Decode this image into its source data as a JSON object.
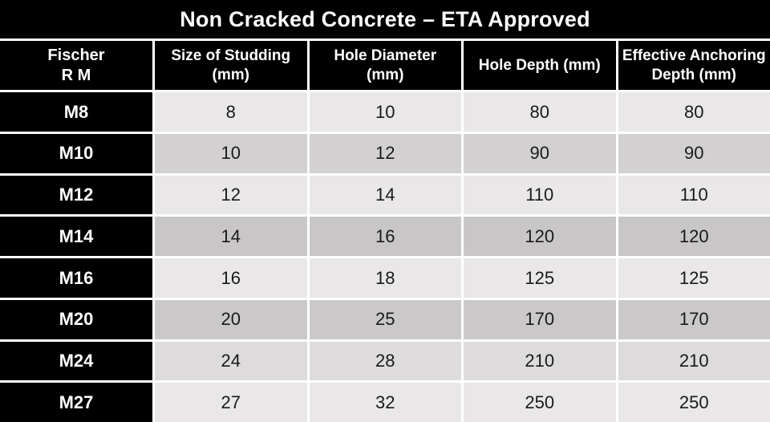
{
  "title": "Non Cracked Concrete – ETA Approved",
  "columns": [
    {
      "label": "Fischer\nR M"
    },
    {
      "label": "Size of Studding\n(mm)"
    },
    {
      "label": "Hole Diameter\n(mm)"
    },
    {
      "label": "Hole Depth (mm)"
    },
    {
      "label": "Effective Anchoring\nDepth (mm)"
    }
  ],
  "rows": [
    {
      "label": "M8",
      "values": [
        "8",
        "10",
        "80",
        "80"
      ],
      "shade": "#e9e7e8"
    },
    {
      "label": "M10",
      "values": [
        "10",
        "12",
        "90",
        "90"
      ],
      "shade": "#d3d0d1"
    },
    {
      "label": "M12",
      "values": [
        "12",
        "14",
        "110",
        "110"
      ],
      "shade": "#e9e7e8"
    },
    {
      "label": "M14",
      "values": [
        "14",
        "16",
        "120",
        "120"
      ],
      "shade": "#c9c6c7"
    },
    {
      "label": "M16",
      "values": [
        "16",
        "18",
        "125",
        "125"
      ],
      "shade": "#e9e7e8"
    },
    {
      "label": "M20",
      "values": [
        "20",
        "25",
        "170",
        "170"
      ],
      "shade": "#cbc8c9"
    },
    {
      "label": "M24",
      "values": [
        "24",
        "28",
        "210",
        "210"
      ],
      "shade": "#dddbdc"
    },
    {
      "label": "M27",
      "values": [
        "27",
        "32",
        "250",
        "250"
      ],
      "shade": "#e9e7e8"
    }
  ],
  "colors": {
    "header_bg": "#000000",
    "header_text": "#ffffff",
    "grid_line": "#ffffff",
    "data_text": "#1a1a1a",
    "row_light": "#e9e7e8",
    "row_medium": "#cdcacb"
  }
}
